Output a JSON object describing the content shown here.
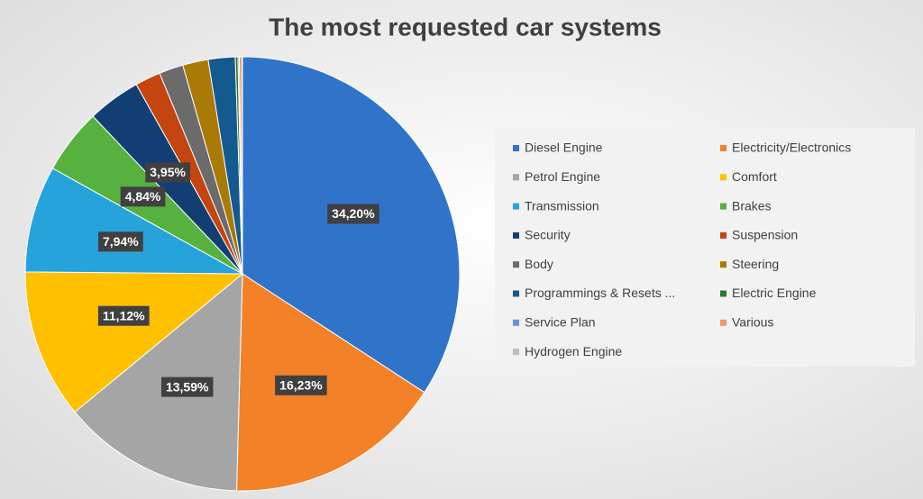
{
  "chart_data": {
    "type": "pie",
    "title": "The most requested car systems",
    "categories": [
      "Diesel Engine",
      "Electricity/Electronics",
      "Petrol Engine",
      "Comfort",
      "Transmission",
      "Brakes",
      "Security",
      "Suspension",
      "Body",
      "Steering",
      "Programmings & Resets ...",
      "Electric Engine",
      "Service Plan",
      "Various",
      "Hydrogen Engine"
    ],
    "values": [
      34.2,
      16.23,
      13.59,
      11.12,
      7.94,
      4.84,
      3.95,
      1.9,
      1.8,
      1.9,
      2.0,
      0.2,
      0.1,
      0.2,
      0.03
    ],
    "value_labels": [
      "34,20%",
      "16,23%",
      "13,59%",
      "11,12%",
      "7,94%",
      "4,84%",
      "3,95%",
      null,
      null,
      null,
      null,
      null,
      null,
      null,
      null
    ],
    "colors": [
      "#2f74c8",
      "#f28128",
      "#a5a5a5",
      "#ffc000",
      "#27a3dc",
      "#56b13f",
      "#123f73",
      "#c4450f",
      "#6b6b6b",
      "#a97a05",
      "#14598f",
      "#2d7a2d",
      "#6b93d6",
      "#f1976a",
      "#bdbdbd"
    ],
    "legend": "right"
  }
}
